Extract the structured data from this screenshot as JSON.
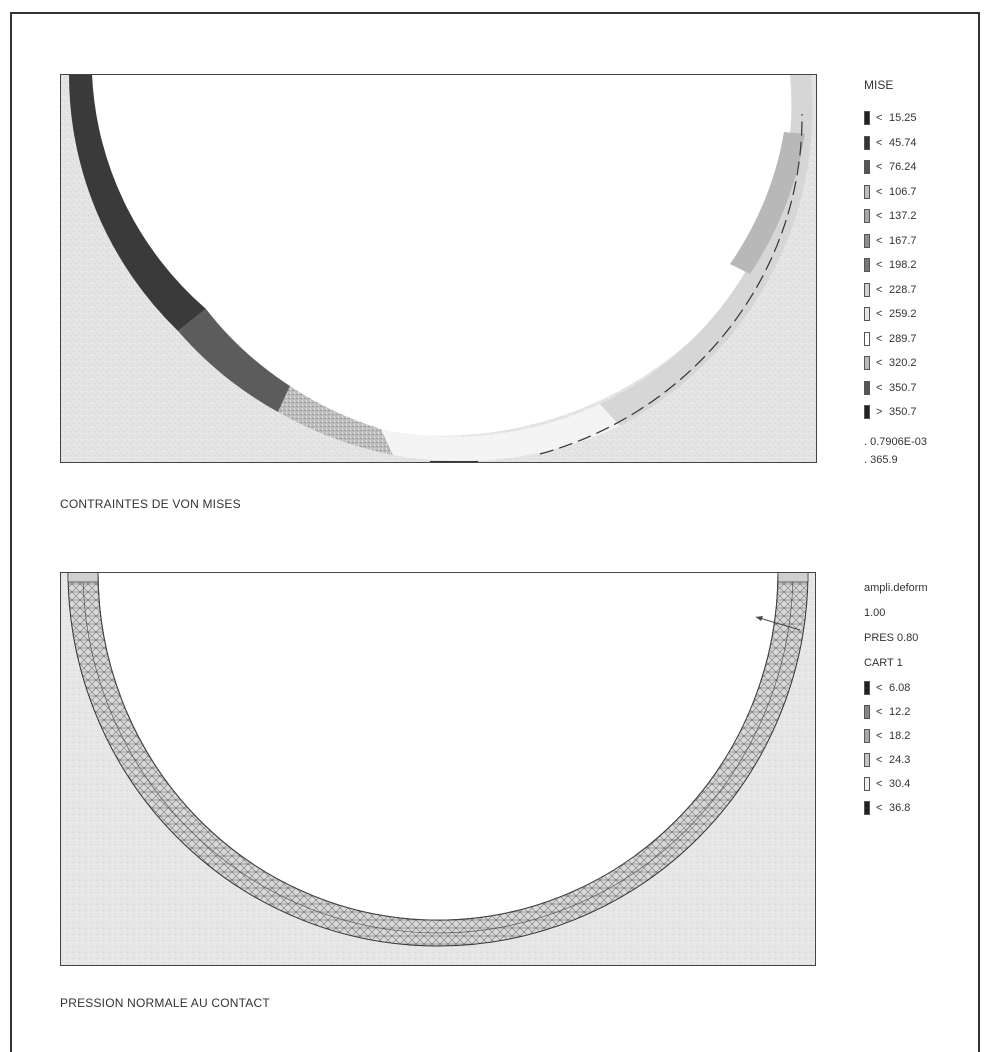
{
  "plot1": {
    "caption": "CONTRAINTES DE VON MISES",
    "legend_title": "MISE",
    "legend": [
      {
        "cmp": "<",
        "value": "15.25",
        "color": "#222222"
      },
      {
        "cmp": "<",
        "value": "45.74",
        "color": "#333333"
      },
      {
        "cmp": "<",
        "value": "76.24",
        "color": "#555555"
      },
      {
        "cmp": "<",
        "value": "106.7",
        "color": "#bdbdbd"
      },
      {
        "cmp": "<",
        "value": "137.2",
        "color": "#a9a9a9"
      },
      {
        "cmp": "<",
        "value": "167.7",
        "color": "#8f8f8f"
      },
      {
        "cmp": "<",
        "value": "198.2",
        "color": "#777777"
      },
      {
        "cmp": "<",
        "value": "228.7",
        "color": "#d2d2d2"
      },
      {
        "cmp": "<",
        "value": "259.2",
        "color": "#e6e6e6"
      },
      {
        "cmp": "<",
        "value": "289.7",
        "color": "#ffffff"
      },
      {
        "cmp": "<",
        "value": "320.2",
        "color": "#bbbbbb"
      },
      {
        "cmp": "<",
        "value": "350.7",
        "color": "#555555"
      },
      {
        "cmp": ">",
        "value": "350.7",
        "color": "#222222"
      }
    ],
    "min": ".  0.7906E-03",
    "max": ".  365.9"
  },
  "plot2": {
    "caption": "PRESSION NORMALE AU CONTACT",
    "header_lines": [
      "ampli.deform",
      "1.00",
      "PRES 0.80",
      "CART   1"
    ],
    "legend": [
      {
        "cmp": "<",
        "value": "6.08",
        "color": "#222222"
      },
      {
        "cmp": "<",
        "value": "12.2",
        "color": "#888888"
      },
      {
        "cmp": "<",
        "value": "18.2",
        "color": "#aaaaaa"
      },
      {
        "cmp": "<",
        "value": "24.3",
        "color": "#c4c4c4"
      },
      {
        "cmp": "<",
        "value": "30.4",
        "color": "#ededed"
      },
      {
        "cmp": "<",
        "value": "36.8",
        "color": "#222222"
      }
    ]
  }
}
